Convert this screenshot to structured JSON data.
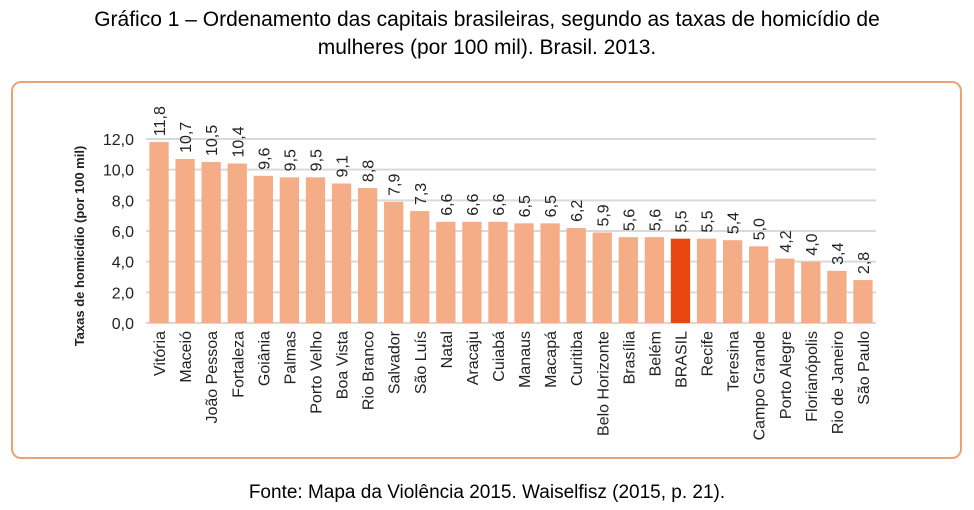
{
  "header": {
    "title_line1": "Gráfico 1 – Ordenamento das capitais brasileiras, segundo as taxas de homicídio de",
    "title_line2": "mulheres (por 100 mil). Brasil. 2013."
  },
  "footer": {
    "source": "Fonte: Mapa da Violência 2015. Waiselfisz (2015, p. 21)."
  },
  "colors": {
    "bar": "#f5ad87",
    "highlight": "#e8470f",
    "grid": "#d9d9d9",
    "frame": "#f0a174"
  },
  "chart_data": {
    "type": "bar",
    "title": "Ordenamento das capitais brasileiras, segundo as taxas de homicídio de mulheres (por 100 mil). Brasil. 2013.",
    "xlabel": "",
    "ylabel": "Taxas de homicídio (por 100 mil)",
    "ylim": [
      0,
      12
    ],
    "yticks": [
      "0,0",
      "2,0",
      "4,0",
      "6,0",
      "8,0",
      "10,0",
      "12,0"
    ],
    "ytick_values": [
      0,
      2,
      4,
      6,
      8,
      10,
      12
    ],
    "grid": true,
    "legend": "none",
    "highlight_category": "BRASIL",
    "categories": [
      "Vitória",
      "Maceió",
      "João Pessoa",
      "Fortaleza",
      "Goiânia",
      "Palmas",
      "Porto Velho",
      "Boa Vista",
      "Rio Branco",
      "Salvador",
      "São Luís",
      "Natal",
      "Aracaju",
      "Cuiabá",
      "Manaus",
      "Macapá",
      "Curitiba",
      "Belo Horizonte",
      "Brasília",
      "Belém",
      "BRASIL",
      "Recife",
      "Teresina",
      "Campo Grande",
      "Porto Alegre",
      "Florianópolis",
      "Rio de Janeiro",
      "São Paulo"
    ],
    "values": [
      11.8,
      10.7,
      10.5,
      10.4,
      9.6,
      9.5,
      9.5,
      9.1,
      8.8,
      7.9,
      7.3,
      6.6,
      6.6,
      6.6,
      6.5,
      6.5,
      6.2,
      5.9,
      5.6,
      5.6,
      5.5,
      5.5,
      5.4,
      5.0,
      4.2,
      4.0,
      3.4,
      2.8
    ],
    "value_labels": [
      "11,8",
      "10,7",
      "10,5",
      "10,4",
      "9,6",
      "9,5",
      "9,5",
      "9,1",
      "8,8",
      "7,9",
      "7,3",
      "6,6",
      "6,6",
      "6,6",
      "6,5",
      "6,5",
      "6,2",
      "5,9",
      "5,6",
      "5,6",
      "5,5",
      "5,5",
      "5,4",
      "5,0",
      "4,2",
      "4,0",
      "3,4",
      "2,8"
    ]
  }
}
